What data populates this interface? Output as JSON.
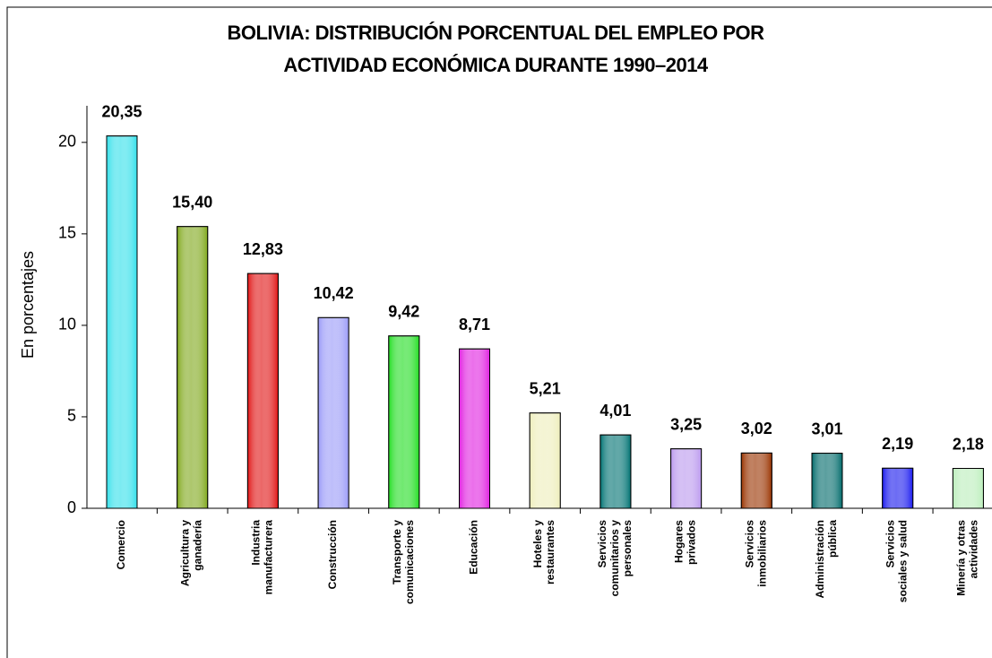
{
  "chart_data": {
    "type": "bar",
    "title": [
      "BOLIVIA: DISTRIBUCIÓN PORCENTUAL DEL EMPLEO POR",
      "ACTIVIDAD ECONÓMICA DURANTE 1990–2014"
    ],
    "y_label": "En porcentajes",
    "categories": [
      "Comercio",
      "Agricultura y\nganadería",
      "Industria\nmanufacturera",
      "Construcción",
      "Transporte y\ncomunicaciones",
      "Educación",
      "Hoteles y\nrestaurantes",
      "Servicios\ncomunitarios y\npersonales",
      "Hogares\nprivados",
      "Servicios\ninmobiliarios",
      "Administración\npública",
      "Servicios\nsociales y salud",
      "Minería y otras\nactividades"
    ],
    "values": [
      20.35,
      15.4,
      12.83,
      10.42,
      9.42,
      8.71,
      5.21,
      4.01,
      3.25,
      3.02,
      3.01,
      2.19,
      2.18
    ],
    "value_labels": [
      "20,35",
      "15,40",
      "12,83",
      "10,42",
      "9,42",
      "8,71",
      "5,21",
      "4,01",
      "3,25",
      "3,02",
      "3,01",
      "2,19",
      "2,18"
    ],
    "colors": [
      "#33e0ea",
      "#80a81c",
      "#e01414",
      "#9a9af8",
      "#22dd22",
      "#e020e0",
      "#eeeebb",
      "#007272",
      "#bb99ee",
      "#993300",
      "#006a6a",
      "#1a1aee",
      "#bbeebb"
    ],
    "ylim": [
      0,
      22
    ],
    "yticks": [
      0,
      5,
      10,
      15,
      20
    ],
    "grid": false
  }
}
